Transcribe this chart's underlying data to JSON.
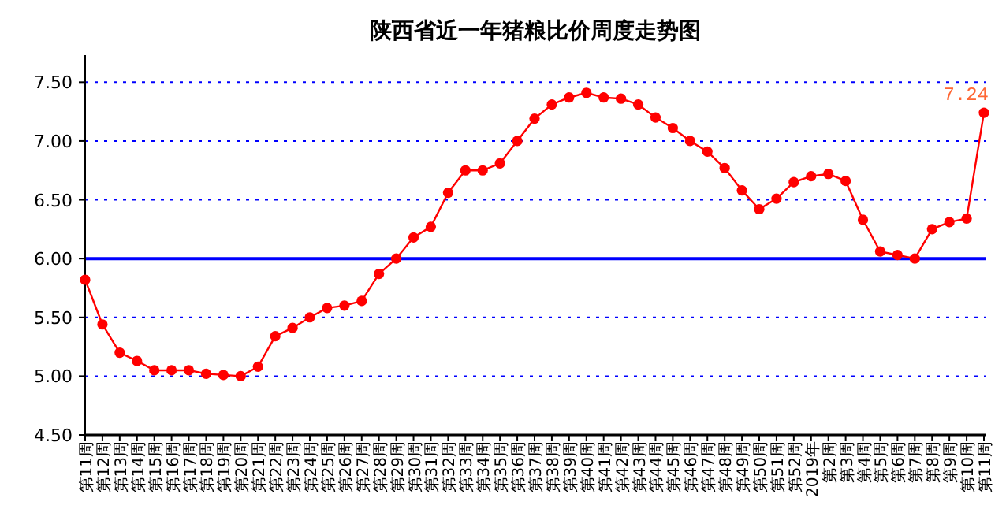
{
  "chart_data": {
    "type": "line",
    "title": "陕西省近一年猪粮比价周度走势图",
    "categories": [
      "第11周",
      "第12周",
      "第13周",
      "第14周",
      "第15周",
      "第16周",
      "第17周",
      "第18周",
      "第19周",
      "第20周",
      "第21周",
      "第22周",
      "第23周",
      "第24周",
      "第25周",
      "第26周",
      "第27周",
      "第28周",
      "第29周",
      "第30周",
      "第31周",
      "第32周",
      "第33周",
      "第34周",
      "第35周",
      "第36周",
      "第37周",
      "第38周",
      "第39周",
      "第40周",
      "第41周",
      "第42周",
      "第43周",
      "第44周",
      "第45周",
      "第46周",
      "第47周",
      "第48周",
      "第49周",
      "第50周",
      "第51周",
      "第52周",
      "2019年",
      "第2周",
      "第3周",
      "第4周",
      "第5周",
      "第6周",
      "第7周",
      "第8周",
      "第9周",
      "第10周",
      "第11周"
    ],
    "series": [
      {
        "color": "#ff0000",
        "values": [
          5.82,
          5.44,
          5.2,
          5.13,
          5.05,
          5.05,
          5.05,
          5.02,
          5.01,
          5.0,
          5.08,
          5.34,
          5.41,
          5.5,
          5.58,
          5.6,
          5.64,
          5.87,
          6.0,
          6.18,
          6.27,
          6.56,
          6.75,
          6.75,
          6.81,
          7.0,
          7.19,
          7.31,
          7.37,
          7.41,
          7.37,
          7.36,
          7.31,
          7.2,
          7.11,
          7.0,
          6.91,
          6.77,
          6.58,
          6.42,
          6.51,
          6.65,
          6.7,
          6.72,
          6.66,
          6.33,
          6.06,
          6.03,
          6.0,
          6.25,
          6.31,
          6.34,
          7.24
        ],
        "value_labels": [
          null,
          null,
          null,
          null,
          null,
          null,
          null,
          null,
          null,
          null,
          null,
          null,
          null,
          null,
          null,
          null,
          null,
          null,
          null,
          null,
          null,
          null,
          null,
          null,
          null,
          null,
          null,
          null,
          null,
          null,
          null,
          null,
          null,
          null,
          null,
          null,
          null,
          null,
          null,
          null,
          null,
          null,
          null,
          null,
          null,
          null,
          null,
          null,
          null,
          null,
          null,
          null,
          "7.24"
        ]
      }
    ],
    "ylim": [
      4.5,
      7.73
    ],
    "yticks": [
      {
        "value": 4.5,
        "label": "4.50"
      },
      {
        "value": 5,
        "label": "5.00"
      },
      {
        "value": 5.5,
        "label": "5.50"
      },
      {
        "value": 6,
        "label": "6.00"
      },
      {
        "value": 6.5,
        "label": "6.50"
      },
      {
        "value": 7,
        "label": "7.00"
      },
      {
        "value": 7.5,
        "label": "7.50"
      }
    ],
    "grid": "y",
    "marker": "circle",
    "line_style": "solid",
    "ref_lines": [
      {
        "axis": "y",
        "value": 6,
        "color": "#0000ff"
      }
    ]
  }
}
